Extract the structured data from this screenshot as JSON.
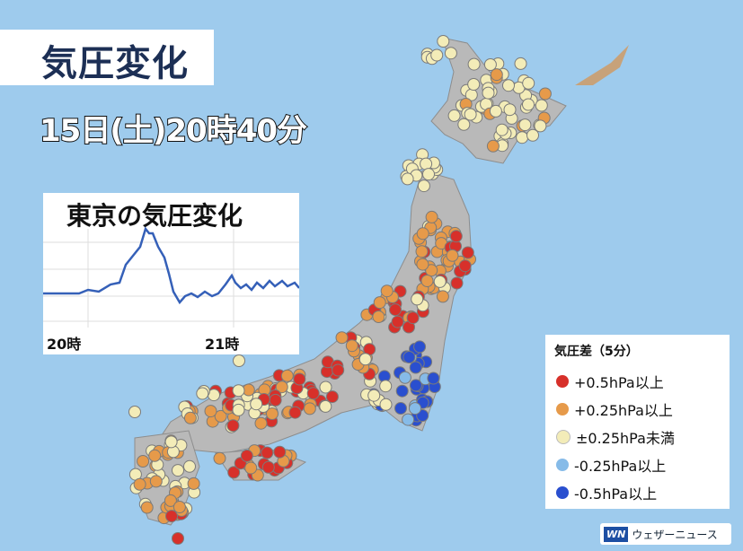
{
  "header": {
    "title": "気圧変化",
    "date": "15日(土)20時40分"
  },
  "inset": {
    "title": "東京の気圧変化",
    "x_labels": [
      "20時",
      "21時"
    ]
  },
  "legend": {
    "title": "気圧差（5分）",
    "items": [
      "+0.5hPa以上",
      "+0.25hPa以上",
      "±0.25hPa未満",
      "-0.25hPa以上",
      "-0.5hPa以上"
    ]
  },
  "logo": "ウェザーニュース"
}
